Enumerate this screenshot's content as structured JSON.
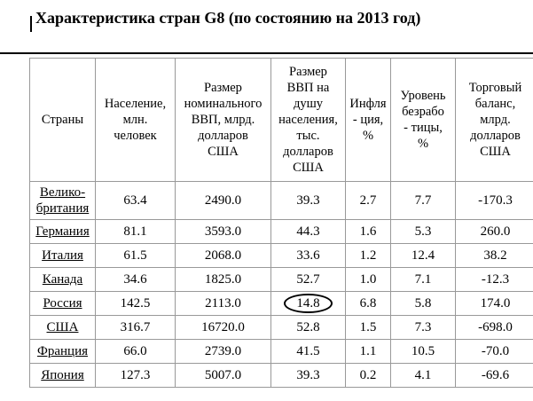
{
  "header": {
    "title": "Характеристика стран G8 (по состоянию на 2013 год)"
  },
  "table": {
    "columns": [
      "Страны",
      "Население,\nмлн.\nчеловек",
      "Размер\nноминального\nВВП, млрд.\nдолларов\nСША",
      "Размер\nВВП на\nдушу\nнаселения,\nтыс.\nдолларов\nСША",
      "Инфля\n- ция,\n%",
      "Уровень\nбезрабо\n- тицы,\n%",
      "Торговый\nбаланс,\nмлрд.\nдолларов\nСША"
    ],
    "rows": [
      [
        "Велико-\nбритания",
        "63.4",
        "2490.0",
        "39.3",
        "2.7",
        "7.7",
        "-170.3"
      ],
      [
        "Германия",
        "81.1",
        "3593.0",
        "44.3",
        "1.6",
        "5.3",
        "260.0"
      ],
      [
        "Италия",
        "61.5",
        "2068.0",
        "33.6",
        "1.2",
        "12.4",
        "38.2"
      ],
      [
        "Канада",
        "34.6",
        "1825.0",
        "52.7",
        "1.0",
        "7.1",
        "-12.3"
      ],
      [
        "Россия",
        "142.5",
        "2113.0",
        "14.8",
        "6.8",
        "5.8",
        "174.0"
      ],
      [
        "США",
        "316.7",
        "16720.0",
        "52.8",
        "1.5",
        "7.3",
        "-698.0"
      ],
      [
        "Франция",
        "66.0",
        "2739.0",
        "41.5",
        "1.1",
        "10.5",
        "-70.0"
      ],
      [
        "Япония",
        "127.3",
        "5007.0",
        "39.3",
        "0.2",
        "4.1",
        "-69.6"
      ]
    ]
  }
}
